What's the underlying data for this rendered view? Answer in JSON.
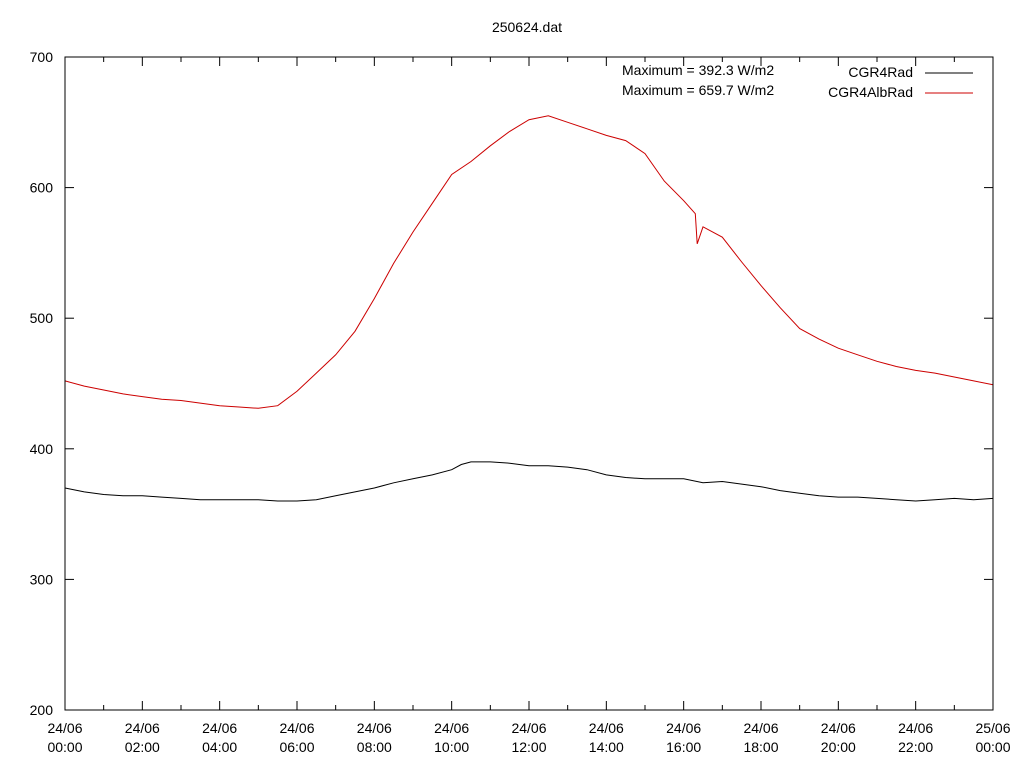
{
  "chart_data": {
    "type": "line",
    "title": "250624.dat",
    "xlabel": "",
    "ylabel": "",
    "ylim": [
      200,
      700
    ],
    "yticks": [
      200,
      300,
      400,
      500,
      600,
      700
    ],
    "xticks": [
      {
        "hour": 0,
        "line1": "24/06",
        "line2": "00:00"
      },
      {
        "hour": 2,
        "line1": "24/06",
        "line2": "02:00"
      },
      {
        "hour": 4,
        "line1": "24/06",
        "line2": "04:00"
      },
      {
        "hour": 6,
        "line1": "24/06",
        "line2": "06:00"
      },
      {
        "hour": 8,
        "line1": "24/06",
        "line2": "08:00"
      },
      {
        "hour": 10,
        "line1": "24/06",
        "line2": "10:00"
      },
      {
        "hour": 12,
        "line1": "24/06",
        "line2": "12:00"
      },
      {
        "hour": 14,
        "line1": "24/06",
        "line2": "14:00"
      },
      {
        "hour": 16,
        "line1": "24/06",
        "line2": "16:00"
      },
      {
        "hour": 18,
        "line1": "24/06",
        "line2": "18:00"
      },
      {
        "hour": 20,
        "line1": "24/06",
        "line2": "20:00"
      },
      {
        "hour": 22,
        "line1": "24/06",
        "line2": "22:00"
      },
      {
        "hour": 24,
        "line1": "25/06",
        "line2": "00:00"
      }
    ],
    "grid": false,
    "legend_position": "top-right",
    "annotations": [
      "Maximum = 392.3 W/m2",
      "Maximum = 659.7 W/m2"
    ],
    "series": [
      {
        "name": "CGR4Rad",
        "color": "#000000",
        "x": [
          0,
          0.5,
          1,
          1.5,
          2,
          2.5,
          3,
          3.5,
          4,
          4.5,
          5,
          5.5,
          6,
          6.5,
          7,
          7.5,
          8,
          8.5,
          9,
          9.5,
          10,
          10.25,
          10.5,
          11,
          11.5,
          12,
          12.5,
          13,
          13.5,
          14,
          14.5,
          15,
          15.5,
          16,
          16.5,
          17,
          17.5,
          18,
          18.5,
          19,
          19.5,
          20,
          20.5,
          21,
          21.5,
          22,
          22.5,
          23,
          23.5,
          24
        ],
        "y": [
          370,
          367,
          365,
          364,
          364,
          363,
          362,
          361,
          361,
          361,
          361,
          360,
          360,
          361,
          364,
          367,
          370,
          374,
          377,
          380,
          384,
          388,
          390,
          390,
          389,
          387,
          387,
          386,
          384,
          380,
          378,
          377,
          377,
          377,
          374,
          375,
          373,
          371,
          368,
          366,
          364,
          363,
          363,
          362,
          361,
          360,
          361,
          362,
          361,
          362
        ]
      },
      {
        "name": "CGR4AlbRad",
        "color": "#cc0000",
        "x": [
          0,
          0.5,
          1,
          1.5,
          2,
          2.5,
          3,
          3.5,
          4,
          4.5,
          5,
          5.5,
          6,
          6.5,
          7,
          7.5,
          8,
          8.5,
          9,
          9.5,
          10,
          10.5,
          11,
          11.5,
          12,
          12.5,
          13,
          13.5,
          14,
          14.5,
          15,
          15.5,
          16,
          16.3,
          16.35,
          16.5,
          17,
          17.5,
          18,
          18.5,
          19,
          19.5,
          20,
          20.5,
          21,
          21.5,
          22,
          22.5,
          23,
          23.5,
          24
        ],
        "y": [
          452,
          448,
          445,
          442,
          440,
          438,
          437,
          435,
          433,
          432,
          431,
          433,
          444,
          458,
          472,
          490,
          515,
          542,
          566,
          588,
          610,
          620,
          632,
          643,
          652,
          655,
          650,
          645,
          640,
          636,
          626,
          605,
          590,
          580,
          557,
          570,
          562,
          543,
          525,
          508,
          492,
          484,
          477,
          472,
          467,
          463,
          460,
          458,
          455,
          452,
          449
        ]
      }
    ]
  }
}
